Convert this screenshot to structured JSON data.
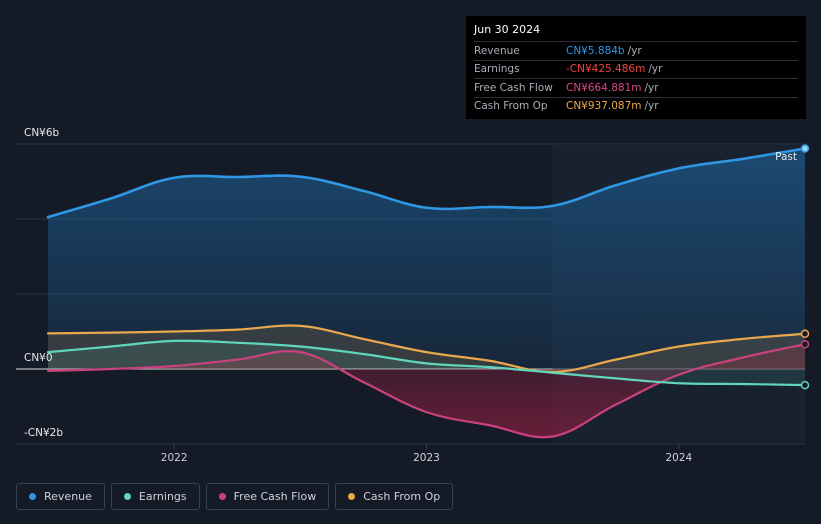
{
  "tooltip": {
    "date": "Jun 30 2024",
    "rows": [
      {
        "label": "Revenue",
        "value": "CN¥5.884b",
        "unit": "/yr",
        "color": "#2f97e4"
      },
      {
        "label": "Earnings",
        "value": "-CN¥425.486m",
        "unit": "/yr",
        "color": "#f0443c"
      },
      {
        "label": "Free Cash Flow",
        "value": "CN¥664.881m",
        "unit": "/yr",
        "color": "#d9488c"
      },
      {
        "label": "Cash From Op",
        "value": "CN¥937.087m",
        "unit": "/yr",
        "color": "#e9a84c"
      }
    ]
  },
  "legend": [
    {
      "label": "Revenue",
      "color": "#2f97e4"
    },
    {
      "label": "Earnings",
      "color": "#5fd6bd"
    },
    {
      "label": "Free Cash Flow",
      "color": "#c9427f"
    },
    {
      "label": "Cash From Op",
      "color": "#e9a84c"
    }
  ],
  "chart_data": {
    "type": "area",
    "x_range": [
      2021.5,
      2024.5
    ],
    "ylim": [
      -2,
      6
    ],
    "ytick_labels": [
      {
        "value": 6,
        "label": "CN¥6b"
      },
      {
        "value": 0,
        "label": "CN¥0"
      },
      {
        "value": -2,
        "label": "-CN¥2b"
      }
    ],
    "xtick_labels": [
      {
        "value": 2022,
        "label": "2022"
      },
      {
        "value": 2023,
        "label": "2023"
      },
      {
        "value": 2024,
        "label": "2024"
      }
    ],
    "past_label": "Past",
    "past_start": 2023.5,
    "series": [
      {
        "name": "Revenue",
        "color": "#2f97e4",
        "x": [
          2021.5,
          2021.75,
          2022.0,
          2022.25,
          2022.5,
          2022.75,
          2023.0,
          2023.25,
          2023.5,
          2023.75,
          2024.0,
          2024.25,
          2024.5
        ],
        "y": [
          4.05,
          4.55,
          5.1,
          5.12,
          5.13,
          4.75,
          4.3,
          4.32,
          4.35,
          4.9,
          5.35,
          5.6,
          5.88
        ]
      },
      {
        "name": "Earnings",
        "color": "#5fd6bd",
        "x": [
          2021.5,
          2021.75,
          2022.0,
          2022.25,
          2022.5,
          2022.75,
          2023.0,
          2023.25,
          2023.5,
          2023.75,
          2024.0,
          2024.25,
          2024.5
        ],
        "y": [
          0.45,
          0.6,
          0.75,
          0.7,
          0.6,
          0.4,
          0.15,
          0.05,
          -0.1,
          -0.25,
          -0.38,
          -0.4,
          -0.43
        ]
      },
      {
        "name": "Free Cash Flow",
        "color": "#c9427f",
        "x": [
          2021.5,
          2021.75,
          2022.0,
          2022.25,
          2022.5,
          2022.75,
          2023.0,
          2023.25,
          2023.5,
          2023.75,
          2024.0,
          2024.25,
          2024.5
        ],
        "y": [
          -0.05,
          0.0,
          0.08,
          0.25,
          0.45,
          -0.35,
          -1.15,
          -1.5,
          -1.8,
          -0.95,
          -0.15,
          0.3,
          0.66
        ]
      },
      {
        "name": "Cash From Op",
        "color": "#e9a84c",
        "x": [
          2021.5,
          2021.75,
          2022.0,
          2022.25,
          2022.5,
          2022.75,
          2023.0,
          2023.25,
          2023.5,
          2023.75,
          2024.0,
          2024.25,
          2024.5
        ],
        "y": [
          0.95,
          0.97,
          1.0,
          1.05,
          1.15,
          0.8,
          0.45,
          0.22,
          -0.08,
          0.25,
          0.6,
          0.8,
          0.94
        ]
      }
    ]
  }
}
